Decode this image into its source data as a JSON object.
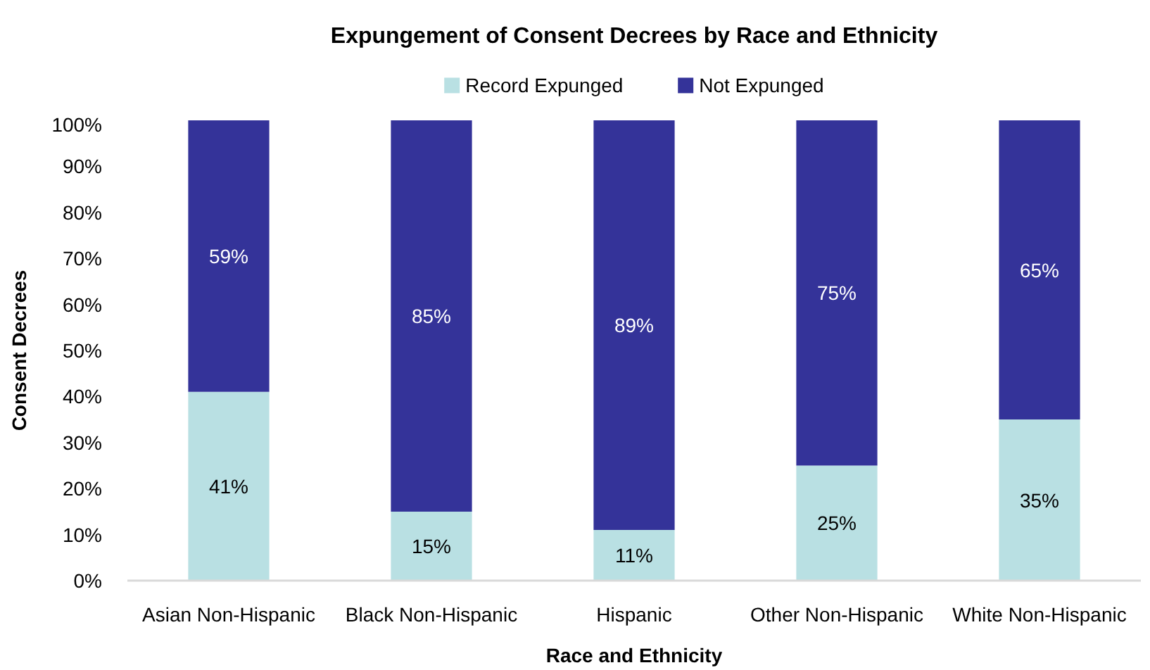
{
  "chart_data": {
    "type": "bar",
    "title": "Expungement of Consent Decrees by Race and Ethnicity",
    "xlabel": "Race and Ethnicity",
    "ylabel": "Consent Decrees",
    "categories": [
      "Asian Non-Hispanic",
      "Black Non-Hispanic",
      "Hispanic",
      "Other Non-Hispanic",
      "White Non-Hispanic"
    ],
    "stacked": true,
    "series": [
      {
        "name": "Record Expunged",
        "color": "#b9e0e3",
        "values": [
          41,
          15,
          11,
          25,
          35
        ],
        "value_labels": [
          "41%",
          "15%",
          "11%",
          "25%",
          "35%"
        ]
      },
      {
        "name": "Not Expunged",
        "color": "#343399",
        "values": [
          59,
          85,
          89,
          75,
          65
        ],
        "value_labels": [
          "59%",
          "85%",
          "89%",
          "75%",
          "65%"
        ]
      }
    ],
    "ylim": [
      0,
      100
    ],
    "yticks": [
      {
        "value": 0,
        "label": "0%"
      },
      {
        "value": 10,
        "label": "10%"
      },
      {
        "value": 20,
        "label": "20%"
      },
      {
        "value": 30,
        "label": "30%"
      },
      {
        "value": 40,
        "label": "40%"
      },
      {
        "value": 50,
        "label": "50%"
      },
      {
        "value": 60,
        "label": "60%"
      },
      {
        "value": 70,
        "label": "70%"
      },
      {
        "value": 80,
        "label": "80%"
      },
      {
        "value": 90,
        "label": "90%"
      },
      {
        "value": 100,
        "label": "100%"
      }
    ],
    "grid": false,
    "legend": "top"
  }
}
